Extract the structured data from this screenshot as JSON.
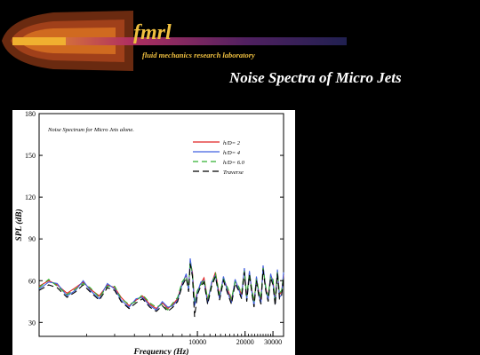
{
  "header": {
    "logo_mark": "fmrl",
    "logo_subtitle": "fluid mechanics research laboratory",
    "page_title": "Noise Spectra of Micro Jets"
  },
  "colors": {
    "background": "#000000",
    "logo_text": "#f0c040",
    "chart_background": "#ffffff"
  },
  "chart_data": {
    "type": "line",
    "title": "Noise Spectrum for Micro Jets alone.",
    "subtitle": "",
    "xlabel": "Frequency (Hz)",
    "ylabel": "SPL (dB)",
    "x_scale": "log",
    "xlim": [
      1000,
      35000
    ],
    "ylim": [
      20,
      180
    ],
    "x_ticks": [
      10000,
      20000,
      30000
    ],
    "x_tick_labels": [
      "10000",
      "20000",
      "30000"
    ],
    "y_ticks": [
      30,
      60,
      90,
      120,
      150,
      180
    ],
    "y_tick_labels": [
      "30",
      "60",
      "90",
      "120",
      "150",
      "180"
    ],
    "grid": false,
    "legend_position": "top-right",
    "series": [
      {
        "name": "h/D= 2",
        "color": "#e02020",
        "dash": "",
        "x": [
          1000,
          1150,
          1300,
          1500,
          1700,
          1900,
          2100,
          2400,
          2700,
          3000,
          3300,
          3700,
          4100,
          4500,
          5000,
          5500,
          6000,
          6500,
          7000,
          7500,
          8000,
          8500,
          8800,
          9000,
          9300,
          9600,
          10000,
          10500,
          11000,
          11600,
          12300,
          13000,
          13800,
          14600,
          15500,
          16400,
          17300,
          18200,
          19000,
          19800,
          20500,
          21300,
          22000,
          22800,
          23600,
          24400,
          25200,
          26000,
          27000,
          28000,
          29000,
          30000,
          31000,
          32000,
          33000,
          34000,
          35000
        ],
        "y": [
          56,
          60,
          57,
          51,
          55,
          59,
          54,
          49,
          57,
          55,
          48,
          42,
          46,
          49,
          43,
          40,
          44,
          40,
          43,
          47,
          58,
          64,
          55,
          74,
          66,
          44,
          52,
          58,
          62,
          46,
          58,
          66,
          49,
          62,
          54,
          46,
          60,
          55,
          50,
          68,
          48,
          66,
          54,
          44,
          62,
          52,
          46,
          70,
          55,
          48,
          64,
          60,
          45,
          67,
          50,
          52,
          64
        ]
      },
      {
        "name": "h/D= 4",
        "color": "#4060e0",
        "dash": "",
        "x": [
          1000,
          1150,
          1300,
          1500,
          1700,
          1900,
          2100,
          2400,
          2700,
          3000,
          3300,
          3700,
          4100,
          4500,
          5000,
          5500,
          6000,
          6500,
          7000,
          7500,
          8000,
          8500,
          8800,
          9000,
          9300,
          9600,
          10000,
          10500,
          11000,
          11600,
          12300,
          13000,
          13800,
          14600,
          15500,
          16400,
          17300,
          18200,
          19000,
          19800,
          20500,
          21300,
          22000,
          22800,
          23600,
          24400,
          25200,
          26000,
          27000,
          28000,
          29000,
          30000,
          31000,
          32000,
          33000,
          34000,
          35000
        ],
        "y": [
          54,
          59,
          58,
          49,
          53,
          60,
          53,
          47,
          58,
          54,
          46,
          41,
          47,
          48,
          42,
          39,
          45,
          41,
          42,
          46,
          57,
          65,
          53,
          76,
          64,
          42,
          51,
          59,
          60,
          44,
          59,
          64,
          47,
          63,
          52,
          44,
          61,
          54,
          48,
          69,
          46,
          67,
          53,
          42,
          63,
          50,
          44,
          71,
          54,
          46,
          65,
          58,
          43,
          68,
          48,
          50,
          66
        ]
      },
      {
        "name": "h/D= 6.0",
        "color": "#30b030",
        "dash": "6 4",
        "x": [
          1000,
          1150,
          1300,
          1500,
          1700,
          1900,
          2100,
          2400,
          2700,
          3000,
          3300,
          3700,
          4100,
          4500,
          5000,
          5500,
          6000,
          6500,
          7000,
          7500,
          8000,
          8500,
          8800,
          9000,
          9300,
          9600,
          10000,
          10500,
          11000,
          11600,
          12300,
          13000,
          13800,
          14600,
          15500,
          16400,
          17300,
          18200,
          19000,
          19800,
          20500,
          21300,
          22000,
          22800,
          23600,
          24400,
          25200,
          26000,
          27000,
          28000,
          29000,
          30000,
          31000,
          32000,
          33000,
          34000,
          35000
        ],
        "y": [
          55,
          61,
          56,
          50,
          54,
          58,
          55,
          48,
          56,
          56,
          47,
          43,
          45,
          50,
          44,
          41,
          43,
          39,
          44,
          48,
          59,
          63,
          56,
          73,
          65,
          45,
          53,
          57,
          61,
          47,
          57,
          65,
          50,
          61,
          55,
          47,
          59,
          56,
          51,
          67,
          49,
          65,
          55,
          45,
          61,
          53,
          47,
          69,
          56,
          49,
          63,
          61,
          46,
          66,
          51,
          53,
          63
        ]
      },
      {
        "name": "Traverse",
        "color": "#000000",
        "dash": "7 4",
        "x": [
          1000,
          1150,
          1300,
          1500,
          1700,
          1900,
          2100,
          2400,
          2700,
          3000,
          3300,
          3700,
          4100,
          4500,
          5000,
          5500,
          6000,
          6500,
          7000,
          7500,
          8000,
          8500,
          8800,
          9000,
          9300,
          9600,
          10000,
          10500,
          11000,
          11600,
          12300,
          13000,
          13800,
          14600,
          15500,
          16400,
          17300,
          18200,
          19000,
          19800,
          20500,
          21300,
          22000,
          22800,
          23600,
          24400,
          25200,
          26000,
          27000,
          28000,
          29000,
          30000,
          31000,
          32000,
          33000,
          34000,
          35000
        ],
        "y": [
          53,
          57,
          55,
          48,
          52,
          57,
          52,
          46,
          55,
          53,
          45,
          40,
          44,
          47,
          41,
          38,
          42,
          38,
          41,
          45,
          56,
          62,
          52,
          72,
          63,
          34,
          50,
          56,
          59,
          43,
          56,
          63,
          46,
          60,
          51,
          43,
          58,
          53,
          47,
          66,
          45,
          64,
          52,
          41,
          60,
          49,
          43,
          68,
          53,
          45,
          62,
          57,
          42,
          65,
          47,
          49,
          62
        ]
      }
    ]
  }
}
